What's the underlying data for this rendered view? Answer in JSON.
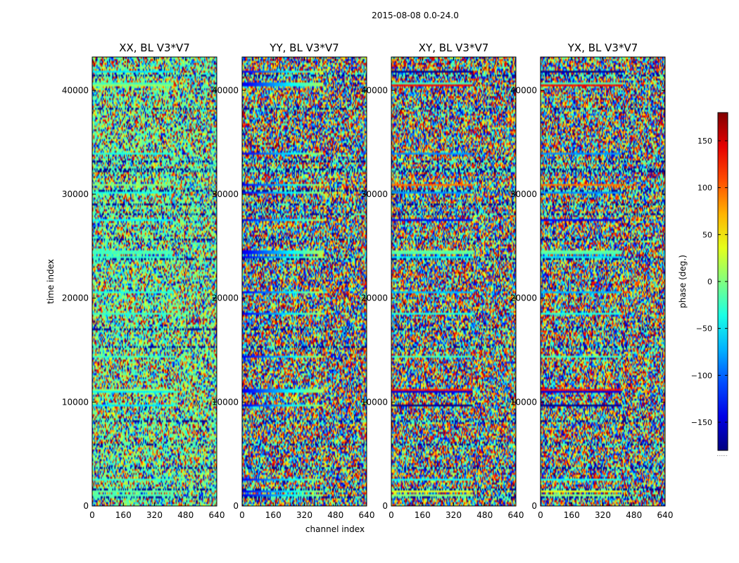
{
  "suptitle": "2015-08-08 0.0-24.0",
  "chart_data": {
    "type": "heatmap",
    "ylabel": "time index",
    "xlabel": "channel index",
    "x_ticks": [
      0,
      160,
      320,
      480,
      640
    ],
    "y_ticks": [
      0,
      10000,
      20000,
      30000,
      40000
    ],
    "xlim": [
      0,
      640
    ],
    "ylim": [
      0,
      43200
    ],
    "panels": [
      {
        "title": "XX, BL V3*V7"
      },
      {
        "title": "YY, BL V3*V7"
      },
      {
        "title": "XY, BL V3*V7"
      },
      {
        "title": "YX, BL V3*V7"
      }
    ],
    "colorbar": {
      "label": "phase (deg.)",
      "range": [
        -180,
        180
      ],
      "ticks": [
        -150,
        -100,
        -50,
        0,
        50,
        100,
        150
      ],
      "colormap": "jet"
    },
    "colorbar_under_label": "......"
  }
}
